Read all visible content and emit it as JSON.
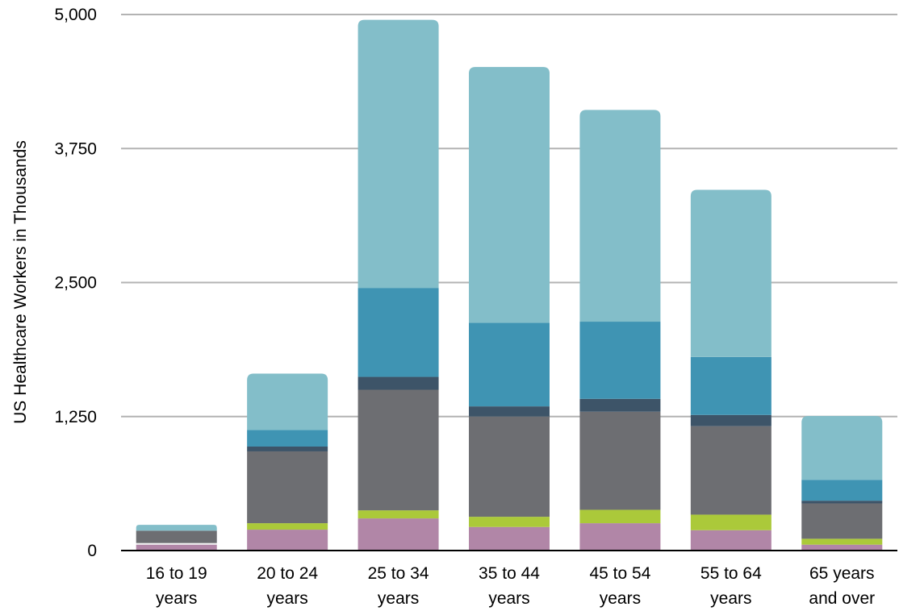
{
  "chart_data": {
    "type": "bar",
    "stacked": true,
    "ylabel": "US Healthcare Workers in Thousands",
    "ylim": [
      0,
      5000
    ],
    "yticks": [
      0,
      1250,
      2500,
      3750,
      5000
    ],
    "ytick_labels": [
      "0",
      "1,250",
      "2,500",
      "3,750",
      "5,000"
    ],
    "grid": true,
    "legend": "none",
    "categories": [
      [
        "16 to 19",
        "years"
      ],
      [
        "20 to 24",
        "years"
      ],
      [
        "25 to 34",
        "years"
      ],
      [
        "35 to 44",
        "years"
      ],
      [
        "45 to 54",
        "years"
      ],
      [
        "55 to 64",
        "years"
      ],
      [
        "65 years",
        "and over"
      ]
    ],
    "series": [
      {
        "color": "#b186a7",
        "values": [
          55,
          195,
          300,
          220,
          255,
          190,
          55
        ]
      },
      {
        "color": "#f2f2f2",
        "values": [
          15,
          0,
          0,
          0,
          0,
          0,
          0
        ]
      },
      {
        "color": "#abc93a",
        "values": [
          0,
          60,
          75,
          95,
          125,
          145,
          55
        ]
      },
      {
        "color": "#6d6e72",
        "values": [
          115,
          670,
          1125,
          935,
          915,
          825,
          330
        ]
      },
      {
        "color": "#3d5468",
        "values": [
          0,
          45,
          120,
          95,
          120,
          105,
          25
        ]
      },
      {
        "color": "#3f94b3",
        "values": [
          0,
          155,
          830,
          780,
          720,
          540,
          195
        ]
      },
      {
        "color": "#83bec9",
        "values": [
          55,
          525,
          2500,
          2385,
          1975,
          1560,
          595
        ]
      }
    ]
  }
}
